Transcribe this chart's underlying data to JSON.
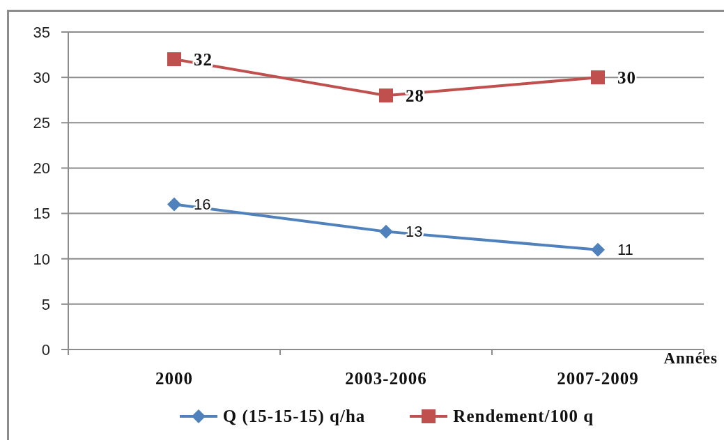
{
  "chart_data": {
    "type": "line",
    "xlabel": "Années",
    "categories": [
      "2000",
      "2003-2006",
      "2007-2009"
    ],
    "series": [
      {
        "name": "Q (15-15-15) q/ha",
        "color": "#4f81bd",
        "marker": "diamond",
        "values": [
          16,
          13,
          11
        ]
      },
      {
        "name": "Rendement/100 q",
        "color": "#c0504d",
        "marker": "square",
        "values": [
          32,
          28,
          30
        ]
      }
    ],
    "ylim": [
      0,
      35
    ],
    "yticks": [
      0,
      5,
      10,
      15,
      20,
      25,
      30,
      35
    ],
    "grid": "y",
    "legend": "bottom",
    "data_labels": true,
    "line_style": "solid"
  }
}
